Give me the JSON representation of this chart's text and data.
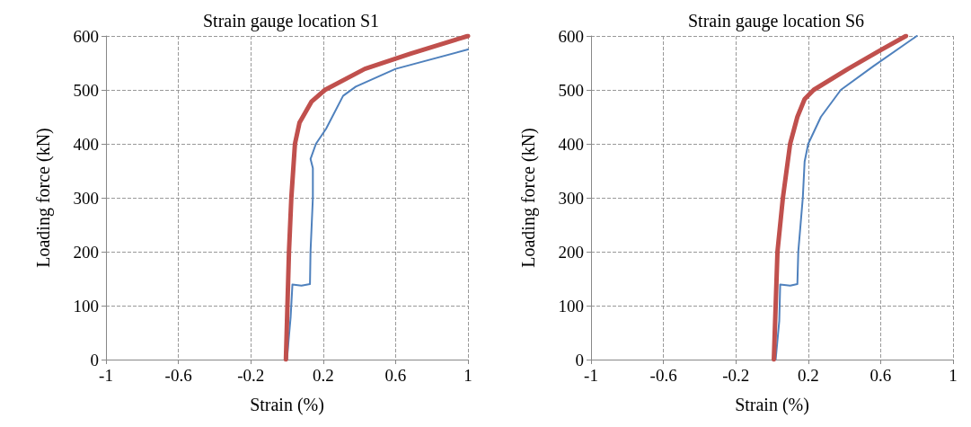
{
  "chart_data": [
    {
      "type": "line",
      "title": "Strain gauge location S1",
      "xlabel": "Strain (%)",
      "ylabel": "Loading force (kN)",
      "xlim": [
        -1,
        1
      ],
      "xticks": [
        -1,
        -0.6,
        -0.2,
        0.2,
        0.6,
        1
      ],
      "ylim": [
        0,
        600
      ],
      "yticks": [
        0,
        100,
        200,
        300,
        400,
        500,
        600
      ],
      "grid": true,
      "marker": "none",
      "line_style": "solid",
      "series": [
        {
          "color": "#4f81bd",
          "x": [
            0,
            0.01,
            0.02,
            0.03,
            0.08,
            0.127,
            0.13,
            0.143,
            0.143,
            0.13,
            0.16,
            0.216,
            0.31,
            0.38,
            0.6,
            1.0
          ],
          "values": [
            0,
            40,
            78,
            139,
            137,
            140,
            200,
            300,
            355,
            372,
            400,
            428,
            489,
            506,
            539,
            575
          ]
        },
        {
          "color": "#c0504d",
          "x": [
            -0.006,
            0.011,
            0.024,
            0.044,
            0.069,
            0.135,
            0.21,
            0.43,
            0.68,
            1.0
          ],
          "values": [
            0,
            200,
            300,
            400,
            439,
            478,
            500,
            539,
            567,
            600
          ]
        }
      ]
    },
    {
      "type": "line",
      "title": "Strain gauge location S6",
      "xlabel": "Strain (%)",
      "ylabel": "Loading force (kN)",
      "xlim": [
        -1,
        1
      ],
      "xticks": [
        -1,
        -0.6,
        -0.2,
        0.2,
        0.6,
        1
      ],
      "ylim": [
        0,
        600
      ],
      "yticks": [
        0,
        100,
        200,
        300,
        400,
        500,
        600
      ],
      "grid": true,
      "marker": "none",
      "line_style": "solid",
      "series": [
        {
          "color": "#4f81bd",
          "x": [
            0.02,
            0.04,
            0.045,
            0.1,
            0.14,
            0.145,
            0.17,
            0.18,
            0.2,
            0.27,
            0.38,
            0.56,
            0.8
          ],
          "values": [
            0,
            72,
            139,
            137,
            140,
            200,
            300,
            367,
            400,
            450,
            500,
            544,
            600
          ]
        },
        {
          "color": "#c0504d",
          "x": [
            0.01,
            0.03,
            0.06,
            0.1,
            0.14,
            0.18,
            0.23,
            0.42,
            0.59,
            0.74
          ],
          "values": [
            0,
            200,
            300,
            400,
            450,
            483,
            500,
            539,
            572,
            600
          ]
        }
      ]
    }
  ]
}
